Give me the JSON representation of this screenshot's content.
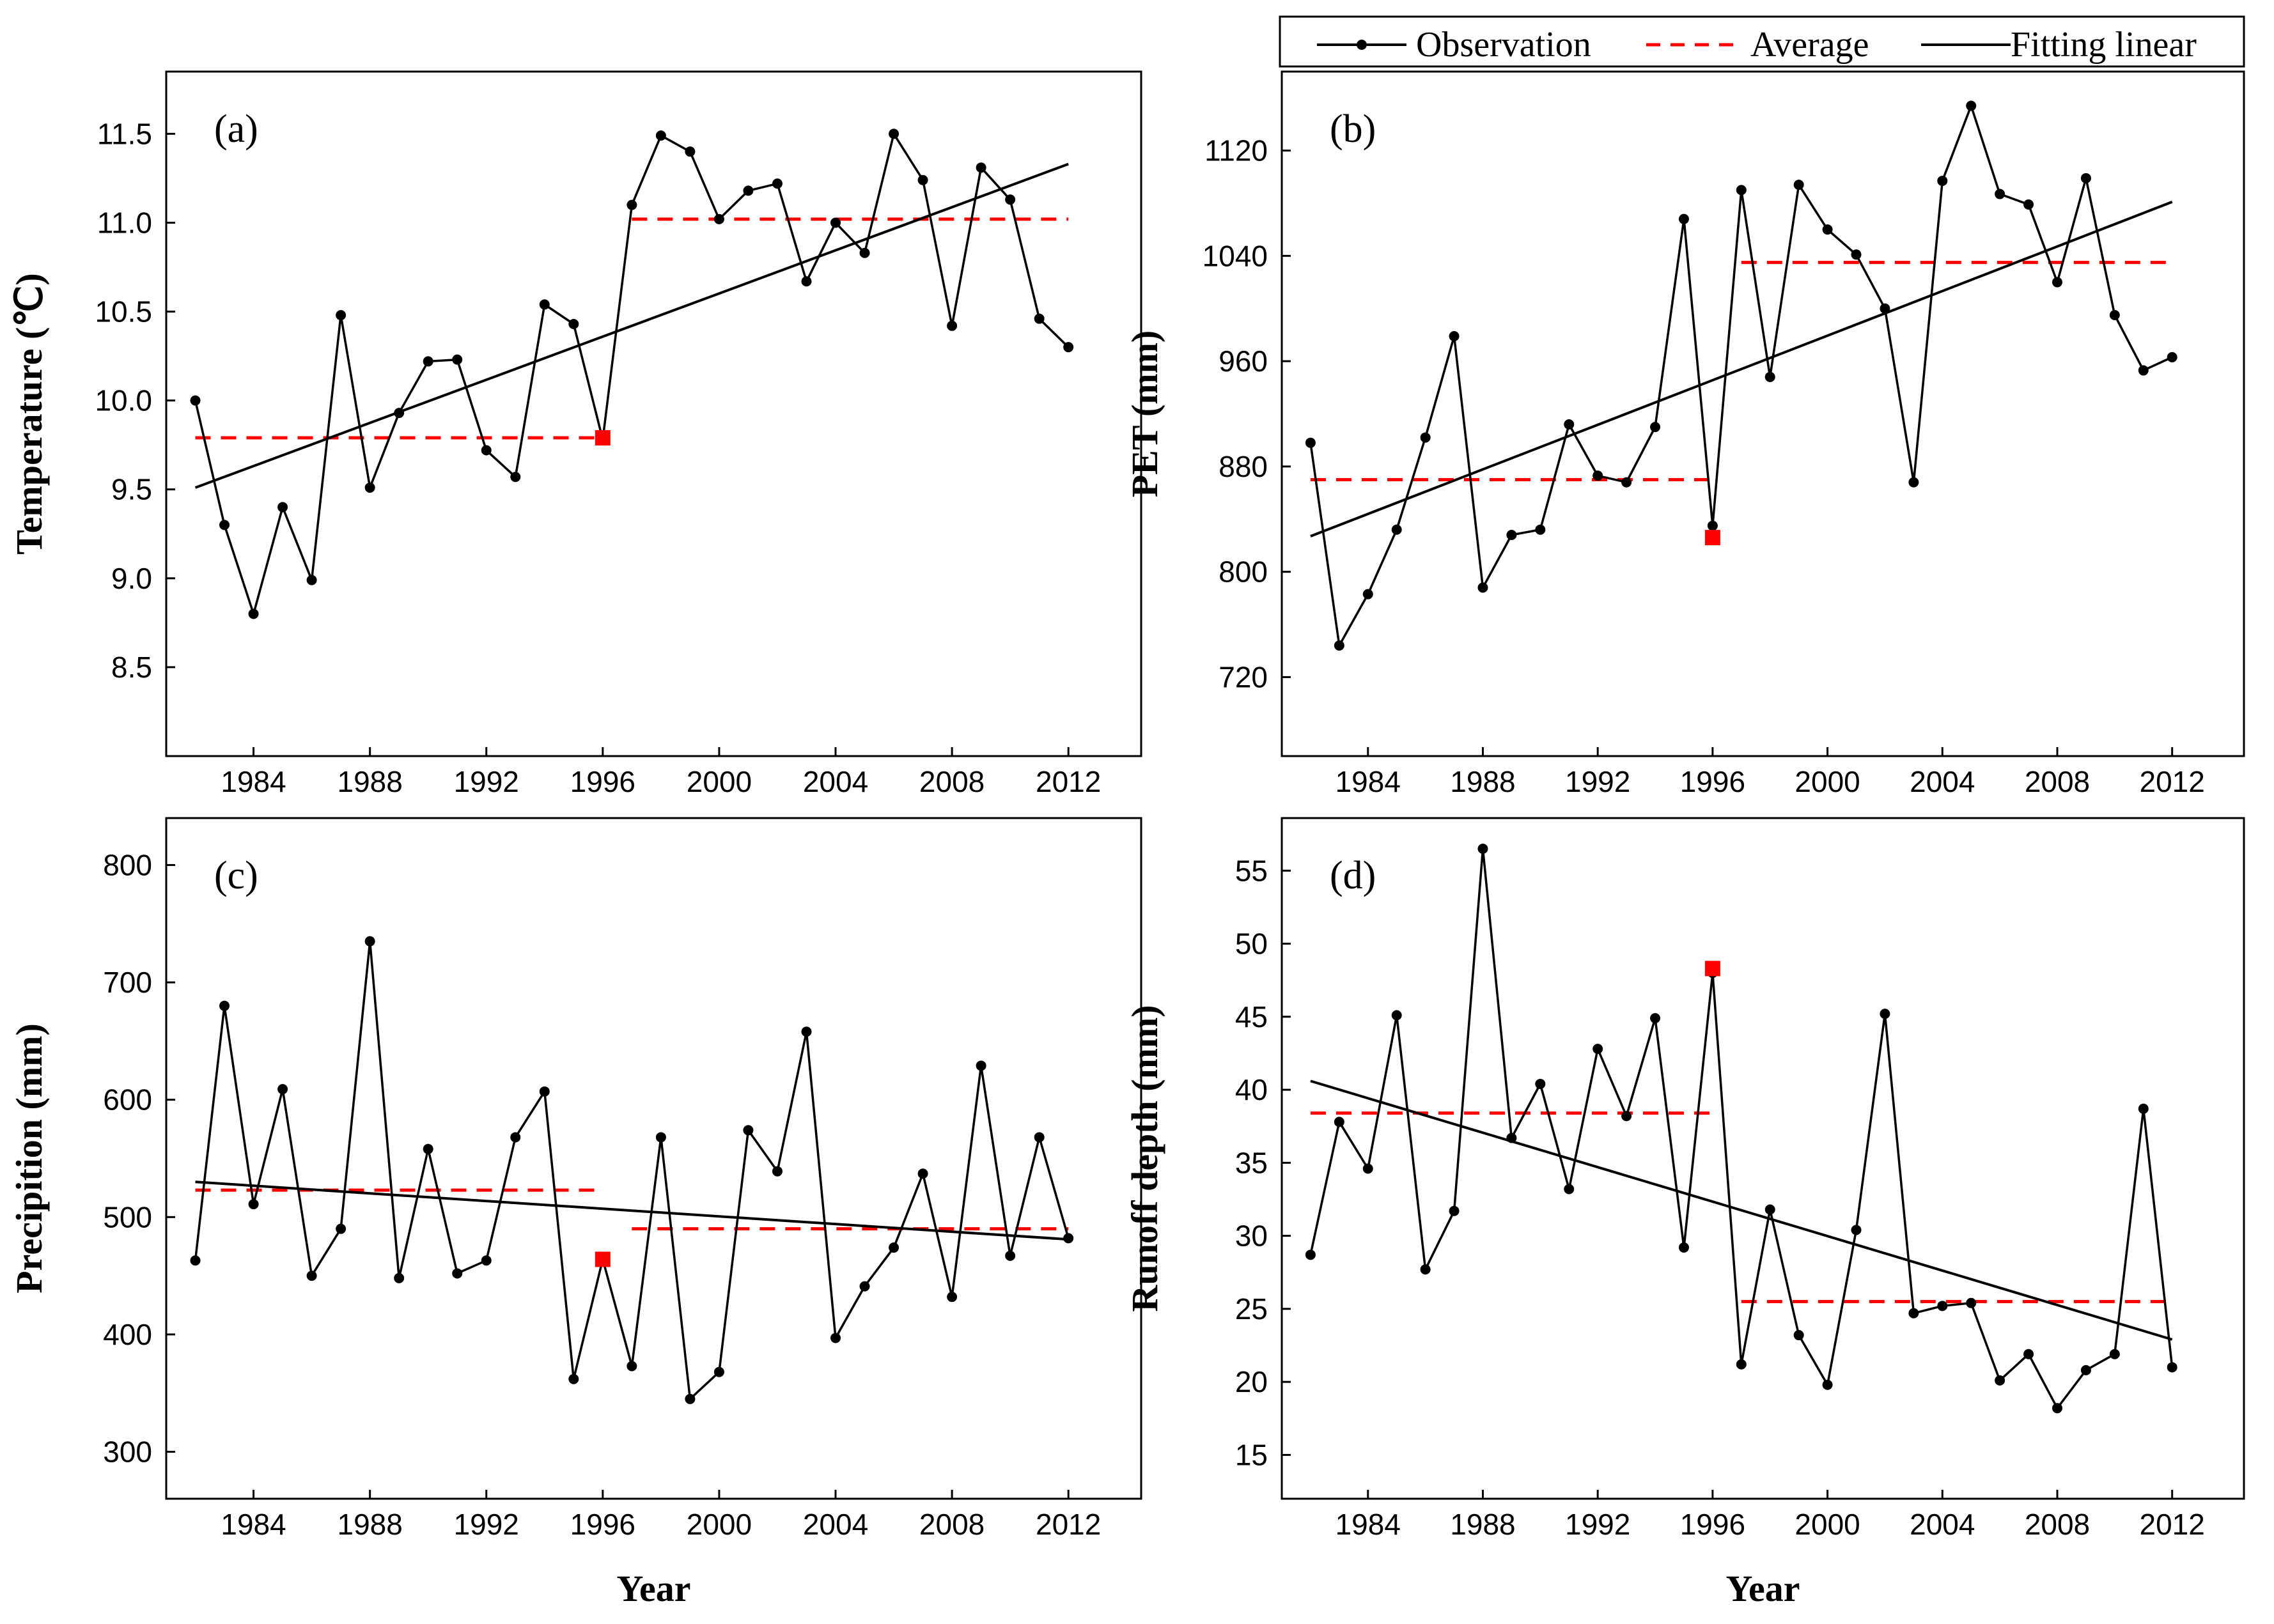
{
  "legend": {
    "observation": "Observation",
    "average": "Average",
    "fitting": "Fitting linear"
  },
  "colors": {
    "observation": "#000000",
    "average": "#ff0000",
    "fitting": "#000000",
    "change_point": "#ff0000"
  },
  "chart_data": [
    {
      "id": "a",
      "type": "line",
      "panel_label": "(a)",
      "ylabel": "Temperature (℃)",
      "xlabel": "",
      "xlim": [
        1981,
        2014.5
      ],
      "ylim": [
        8.0,
        11.85
      ],
      "xticks": [
        1984,
        1988,
        1992,
        1996,
        2000,
        2004,
        2008,
        2012
      ],
      "xtick_labels": [
        "1984",
        "1988",
        "1992",
        "1996",
        "2000",
        "2004",
        "2008",
        "2012"
      ],
      "yticks": [
        8.5,
        9.0,
        9.5,
        10.0,
        10.5,
        11.0,
        11.5
      ],
      "ytick_labels": [
        "8.5",
        "9.0",
        "9.5",
        "10.0",
        "10.5",
        "11.0",
        "11.5"
      ],
      "x": [
        1982,
        1983,
        1984,
        1985,
        1986,
        1987,
        1988,
        1989,
        1990,
        1991,
        1992,
        1993,
        1994,
        1995,
        1996,
        1997,
        1998,
        1999,
        2000,
        2001,
        2002,
        2003,
        2004,
        2005,
        2006,
        2007,
        2008,
        2009,
        2010,
        2011,
        2012
      ],
      "values": [
        10.0,
        9.3,
        8.8,
        9.4,
        8.99,
        10.48,
        9.51,
        9.93,
        10.22,
        10.23,
        9.72,
        9.57,
        10.54,
        10.43,
        9.78,
        11.1,
        11.49,
        11.4,
        11.02,
        11.18,
        11.22,
        10.67,
        11.0,
        10.83,
        11.5,
        11.24,
        10.42,
        11.31,
        11.13,
        10.46,
        10.3
      ],
      "change_point": {
        "x": 1996,
        "y": 9.79
      },
      "average_before": {
        "x": [
          1982,
          1996
        ],
        "y": 9.79
      },
      "average_after": {
        "x": [
          1997,
          2012
        ],
        "y": 11.02
      },
      "fit": {
        "x": [
          1982,
          2012
        ],
        "y": [
          9.51,
          11.33
        ]
      }
    },
    {
      "id": "b",
      "type": "line",
      "panel_label": "(b)",
      "ylabel": "PET (mm)",
      "xlabel": "",
      "xlim": [
        1981,
        2014.5
      ],
      "ylim": [
        660,
        1180
      ],
      "xticks": [
        1984,
        1988,
        1992,
        1996,
        2000,
        2004,
        2008,
        2012
      ],
      "xtick_labels": [
        "1984",
        "1988",
        "1992",
        "1996",
        "2000",
        "2004",
        "2008",
        "2012"
      ],
      "yticks": [
        720,
        800,
        880,
        960,
        1040,
        1120
      ],
      "ytick_labels": [
        "720",
        "800",
        "880",
        "960",
        "1040",
        "1120"
      ],
      "x": [
        1982,
        1983,
        1984,
        1985,
        1986,
        1987,
        1988,
        1989,
        1990,
        1991,
        1992,
        1993,
        1994,
        1995,
        1996,
        1997,
        1998,
        1999,
        2000,
        2001,
        2002,
        2003,
        2004,
        2005,
        2006,
        2007,
        2008,
        2009,
        2010,
        2011,
        2012
      ],
      "values": [
        898,
        744,
        783,
        832,
        902,
        979,
        788,
        828,
        832,
        912,
        873,
        868,
        910,
        1068,
        835,
        1090,
        948,
        1094,
        1060,
        1041,
        1000,
        868,
        1097,
        1154,
        1087,
        1079,
        1020,
        1099,
        995,
        953,
        963
      ],
      "change_point": {
        "x": 1996,
        "y": 826
      },
      "average_before": {
        "x": [
          1982,
          1996
        ],
        "y": 870
      },
      "average_after": {
        "x": [
          1997,
          2012
        ],
        "y": 1035
      },
      "fit": {
        "x": [
          1982,
          2012
        ],
        "y": [
          827,
          1081
        ]
      }
    },
    {
      "id": "c",
      "type": "line",
      "panel_label": "(c)",
      "ylabel": "Precipition (mm)",
      "xlabel": "Year",
      "xlim": [
        1981,
        2014.5
      ],
      "ylim": [
        260,
        840
      ],
      "xticks": [
        1984,
        1988,
        1992,
        1996,
        2000,
        2004,
        2008,
        2012
      ],
      "xtick_labels": [
        "1984",
        "1988",
        "1992",
        "1996",
        "2000",
        "2004",
        "2008",
        "2012"
      ],
      "yticks": [
        300,
        400,
        500,
        600,
        700,
        800
      ],
      "ytick_labels": [
        "300",
        "400",
        "500",
        "600",
        "700",
        "800"
      ],
      "x": [
        1982,
        1983,
        1984,
        1985,
        1986,
        1987,
        1988,
        1989,
        1990,
        1991,
        1992,
        1993,
        1994,
        1995,
        1996,
        1997,
        1998,
        1999,
        2000,
        2001,
        2002,
        2003,
        2004,
        2005,
        2006,
        2007,
        2008,
        2009,
        2010,
        2011,
        2012
      ],
      "values": [
        463,
        680,
        511,
        609,
        450,
        490,
        735,
        448,
        558,
        452,
        463,
        568,
        607,
        362,
        464,
        373,
        568,
        345,
        368,
        574,
        539,
        658,
        397,
        441,
        474,
        537,
        432,
        629,
        467,
        568,
        482
      ],
      "change_point": {
        "x": 1996,
        "y": 464
      },
      "average_before": {
        "x": [
          1982,
          1996
        ],
        "y": 523
      },
      "average_after": {
        "x": [
          1997,
          2012
        ],
        "y": 490
      },
      "fit": {
        "x": [
          1982,
          2012
        ],
        "y": [
          530,
          481
        ]
      }
    },
    {
      "id": "d",
      "type": "line",
      "panel_label": "(d)",
      "ylabel": "Runoff depth (mm)",
      "xlabel": "Year",
      "xlim": [
        1981,
        2014.5
      ],
      "ylim": [
        12,
        58.6
      ],
      "xticks": [
        1984,
        1988,
        1992,
        1996,
        2000,
        2004,
        2008,
        2012
      ],
      "xtick_labels": [
        "1984",
        "1988",
        "1992",
        "1996",
        "2000",
        "2004",
        "2008",
        "2012"
      ],
      "yticks": [
        15,
        20,
        25,
        30,
        35,
        40,
        45,
        50,
        55
      ],
      "ytick_labels": [
        "15",
        "20",
        "25",
        "30",
        "35",
        "40",
        "45",
        "50",
        "55"
      ],
      "x": [
        1982,
        1983,
        1984,
        1985,
        1986,
        1987,
        1988,
        1989,
        1990,
        1991,
        1992,
        1993,
        1994,
        1995,
        1996,
        1997,
        1998,
        1999,
        2000,
        2001,
        2002,
        2003,
        2004,
        2005,
        2006,
        2007,
        2008,
        2009,
        2010,
        2011,
        2012
      ],
      "values": [
        28.7,
        37.8,
        34.6,
        45.1,
        27.7,
        31.7,
        56.5,
        36.7,
        40.4,
        33.2,
        42.8,
        38.2,
        44.9,
        29.2,
        48.0,
        21.2,
        31.8,
        23.2,
        19.8,
        30.4,
        45.2,
        24.7,
        25.2,
        25.4,
        20.1,
        21.9,
        18.2,
        20.8,
        21.9,
        38.7,
        21.0
      ],
      "change_point": {
        "x": 1996,
        "y": 48.3
      },
      "average_before": {
        "x": [
          1982,
          1996
        ],
        "y": 38.4
      },
      "average_after": {
        "x": [
          1997,
          2012
        ],
        "y": 25.5
      },
      "fit": {
        "x": [
          1982,
          2012
        ],
        "y": [
          40.6,
          22.9
        ]
      }
    }
  ]
}
